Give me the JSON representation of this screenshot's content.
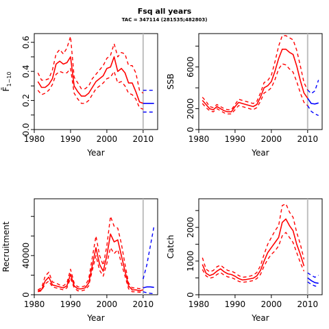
{
  "figure": {
    "title": "Fsq all years",
    "subtitle": "TAC = 347114 (281535;482803)",
    "colors": {
      "historic": "#ff0000",
      "forecast": "#0000ff",
      "marker": "#bebebe",
      "axis": "#000000"
    }
  },
  "chart_data": [
    {
      "type": "line",
      "name": "fbar",
      "xlabel": "Year",
      "ylabel": "F̄",
      "ylabel_subscript": "1−10",
      "xlim": [
        1980,
        2014
      ],
      "ylim": [
        0,
        0.66
      ],
      "xticks": [
        1980,
        1990,
        2000,
        2010
      ],
      "yticks": [
        0.0,
        0.1,
        0.2,
        0.3,
        0.4,
        0.5,
        0.6
      ],
      "ytick_labels": [
        "0.0",
        "",
        "0.2",
        "",
        "0.4",
        "",
        "0.6"
      ],
      "marker_x": 2010,
      "x": [
        1981,
        1982,
        1983,
        1984,
        1985,
        1986,
        1987,
        1988,
        1989,
        1990,
        1991,
        1992,
        1993,
        1994,
        1995,
        1996,
        1997,
        1998,
        1999,
        2000,
        2001,
        2002,
        2003,
        2004,
        2005,
        2006,
        2007,
        2008,
        2009,
        2010
      ],
      "series": [
        {
          "role": "estimate",
          "values": [
            0.33,
            0.29,
            0.29,
            0.31,
            0.35,
            0.45,
            0.47,
            0.45,
            0.46,
            0.5,
            0.3,
            0.26,
            0.23,
            0.23,
            0.25,
            0.29,
            0.33,
            0.35,
            0.37,
            0.42,
            0.43,
            0.5,
            0.4,
            0.42,
            0.39,
            0.32,
            0.32,
            0.26,
            0.19,
            0.18
          ]
        },
        {
          "role": "upper",
          "values": [
            0.39,
            0.34,
            0.34,
            0.35,
            0.41,
            0.52,
            0.55,
            0.52,
            0.56,
            0.64,
            0.36,
            0.32,
            0.28,
            0.28,
            0.3,
            0.35,
            0.38,
            0.41,
            0.44,
            0.49,
            0.51,
            0.59,
            0.5,
            0.53,
            0.52,
            0.44,
            0.44,
            0.39,
            0.27,
            0.25
          ]
        },
        {
          "role": "lower",
          "values": [
            0.27,
            0.24,
            0.25,
            0.27,
            0.31,
            0.38,
            0.4,
            0.39,
            0.39,
            0.42,
            0.25,
            0.21,
            0.18,
            0.18,
            0.2,
            0.24,
            0.28,
            0.3,
            0.32,
            0.35,
            0.36,
            0.4,
            0.32,
            0.33,
            0.3,
            0.25,
            0.24,
            0.21,
            0.15,
            0.14
          ]
        }
      ],
      "forecast": {
        "x": [
          2010,
          2011,
          2012,
          2013
        ],
        "estimate": [
          0.18,
          0.18,
          0.18,
          0.18
        ],
        "upper": [
          0.27,
          0.27,
          0.27,
          0.27
        ],
        "lower": [
          0.12,
          0.12,
          0.12,
          0.12
        ]
      }
    },
    {
      "type": "line",
      "name": "ssb",
      "xlabel": "Year",
      "ylabel": "SSB",
      "ylabel_subscript": "",
      "xlim": [
        1980,
        2014
      ],
      "ylim": [
        0,
        9200
      ],
      "xticks": [
        1980,
        1990,
        2000,
        2010
      ],
      "yticks": [
        0,
        2000,
        4000,
        6000,
        8000
      ],
      "ytick_labels": [
        "0",
        "2000",
        "",
        "6000",
        ""
      ],
      "marker_x": 2010,
      "x": [
        1981,
        1982,
        1983,
        1984,
        1985,
        1986,
        1987,
        1988,
        1989,
        1990,
        1991,
        1992,
        1993,
        1994,
        1995,
        1996,
        1997,
        1998,
        1999,
        2000,
        2001,
        2002,
        2003,
        2004,
        2005,
        2006,
        2007,
        2008,
        2009,
        2010
      ],
      "series": [
        {
          "role": "estimate",
          "values": [
            2800,
            2400,
            2000,
            1900,
            2200,
            2000,
            1800,
            1700,
            1700,
            2200,
            2600,
            2500,
            2400,
            2300,
            2200,
            2400,
            3100,
            4000,
            4200,
            4600,
            5600,
            6800,
            7700,
            7700,
            7400,
            7200,
            6100,
            4700,
            3500,
            3000
          ]
        },
        {
          "role": "upper",
          "values": [
            3100,
            2700,
            2200,
            2100,
            2400,
            2200,
            2000,
            1900,
            1900,
            2400,
            2900,
            2800,
            2700,
            2600,
            2500,
            2700,
            3500,
            4500,
            4700,
            5200,
            6500,
            8000,
            9000,
            9000,
            8800,
            8600,
            7600,
            6100,
            4500,
            3800
          ]
        },
        {
          "role": "lower",
          "values": [
            2500,
            2100,
            1800,
            1700,
            2000,
            1800,
            1600,
            1500,
            1500,
            1900,
            2300,
            2200,
            2100,
            2000,
            1900,
            2100,
            2700,
            3500,
            3700,
            4000,
            4800,
            5800,
            6300,
            6200,
            5800,
            5500,
            4600,
            3500,
            2600,
            2300
          ]
        }
      ],
      "forecast": {
        "x": [
          2010,
          2011,
          2012,
          2013
        ],
        "estimate": [
          3000,
          2500,
          2450,
          2550
        ],
        "upper": [
          3800,
          3450,
          3700,
          4750
        ],
        "lower": [
          2300,
          1750,
          1500,
          1350
        ]
      }
    },
    {
      "type": "line",
      "name": "recruitment",
      "xlabel": "Year",
      "ylabel": "Recruitment",
      "ylabel_subscript": "",
      "xlim": [
        1980,
        2014
      ],
      "ylim": [
        0,
        98000
      ],
      "xticks": [
        1980,
        1990,
        2000,
        2010
      ],
      "yticks": [
        0,
        20000,
        40000,
        60000,
        80000
      ],
      "ytick_labels": [
        "0",
        "",
        "40000",
        "",
        ""
      ],
      "marker_x": 2010,
      "x": [
        1981,
        1982,
        1983,
        1984,
        1985,
        1986,
        1987,
        1988,
        1989,
        1990,
        1991,
        1992,
        1993,
        1994,
        1995,
        1996,
        1997,
        1998,
        1999,
        2000,
        2001,
        2002,
        2003,
        2004,
        2005,
        2006,
        2007,
        2008,
        2009,
        2010
      ],
      "series": [
        {
          "role": "estimate",
          "values": [
            4000,
            5000,
            14000,
            18000,
            10000,
            9000,
            8000,
            7000,
            9000,
            21000,
            9000,
            6000,
            6000,
            7000,
            12000,
            30000,
            48000,
            31000,
            24000,
            40000,
            62000,
            54000,
            56000,
            40000,
            24000,
            9000,
            5000,
            5000,
            4000,
            5000
          ]
        },
        {
          "role": "upper",
          "values": [
            5000,
            7000,
            19000,
            23000,
            13000,
            12000,
            10000,
            9000,
            12000,
            26000,
            12000,
            8000,
            8000,
            9000,
            16000,
            38000,
            60000,
            40000,
            30000,
            50000,
            80000,
            70000,
            68000,
            52000,
            31000,
            12000,
            7000,
            7000,
            6000,
            8000
          ]
        },
        {
          "role": "lower",
          "values": [
            3000,
            4000,
            11000,
            14000,
            8000,
            7000,
            6000,
            5000,
            7000,
            17000,
            7000,
            4000,
            4000,
            5000,
            9000,
            25000,
            40000,
            25000,
            19000,
            32000,
            48000,
            42000,
            46000,
            32000,
            19000,
            6000,
            3000,
            3000,
            2500,
            3000
          ]
        }
      ],
      "forecast": {
        "x": [
          2010,
          2011,
          2012,
          2013
        ],
        "estimate": [
          7000,
          8000,
          8000,
          7500
        ],
        "upper": [
          16000,
          30000,
          50000,
          70000
        ],
        "lower": [
          3000,
          2000,
          1500,
          1000
        ]
      }
    },
    {
      "type": "line",
      "name": "catch",
      "xlabel": "Year",
      "ylabel": "Catch",
      "ylabel_subscript": "",
      "xlim": [
        1980,
        2014
      ],
      "ylim": [
        0,
        2850
      ],
      "xticks": [
        1980,
        1990,
        2000,
        2010
      ],
      "yticks": [
        0,
        500,
        1000,
        1500,
        2000,
        2500
      ],
      "ytick_labels": [
        "0",
        "",
        "1000",
        "",
        "2000",
        ""
      ],
      "marker_x": 2010,
      "x": [
        1981,
        1982,
        1983,
        1984,
        1985,
        1986,
        1987,
        1988,
        1989,
        1990,
        1991,
        1992,
        1993,
        1994,
        1995,
        1996,
        1997,
        1998,
        1999,
        2000,
        2001,
        2002,
        2003,
        2004,
        2005,
        2006,
        2007,
        2008,
        2009
      ],
      "series": [
        {
          "role": "estimate",
          "values": [
            900,
            640,
            570,
            610,
            700,
            770,
            680,
            620,
            600,
            550,
            480,
            440,
            450,
            470,
            490,
            560,
            720,
            1000,
            1250,
            1400,
            1550,
            1700,
            2150,
            2250,
            2050,
            1900,
            1500,
            1200,
            850
          ]
        },
        {
          "role": "upper",
          "values": [
            1100,
            760,
            680,
            720,
            830,
            880,
            790,
            720,
            700,
            650,
            570,
            520,
            530,
            550,
            580,
            660,
            860,
            1200,
            1500,
            1700,
            1900,
            2050,
            2650,
            2700,
            2450,
            2300,
            1850,
            1500,
            1050
          ]
        },
        {
          "role": "lower",
          "values": [
            750,
            560,
            490,
            520,
            600,
            660,
            580,
            530,
            510,
            460,
            400,
            370,
            380,
            400,
            420,
            480,
            600,
            850,
            1050,
            1200,
            1300,
            1450,
            1750,
            1850,
            1700,
            1550,
            1250,
            950,
            700
          ]
        }
      ],
      "forecast": {
        "x": [
          2010,
          2011,
          2012,
          2013
        ],
        "estimate": [
          500,
          420,
          360,
          340
        ],
        "upper": [
          650,
          580,
          520,
          580
        ],
        "lower": [
          380,
          310,
          260,
          240
        ]
      }
    }
  ]
}
